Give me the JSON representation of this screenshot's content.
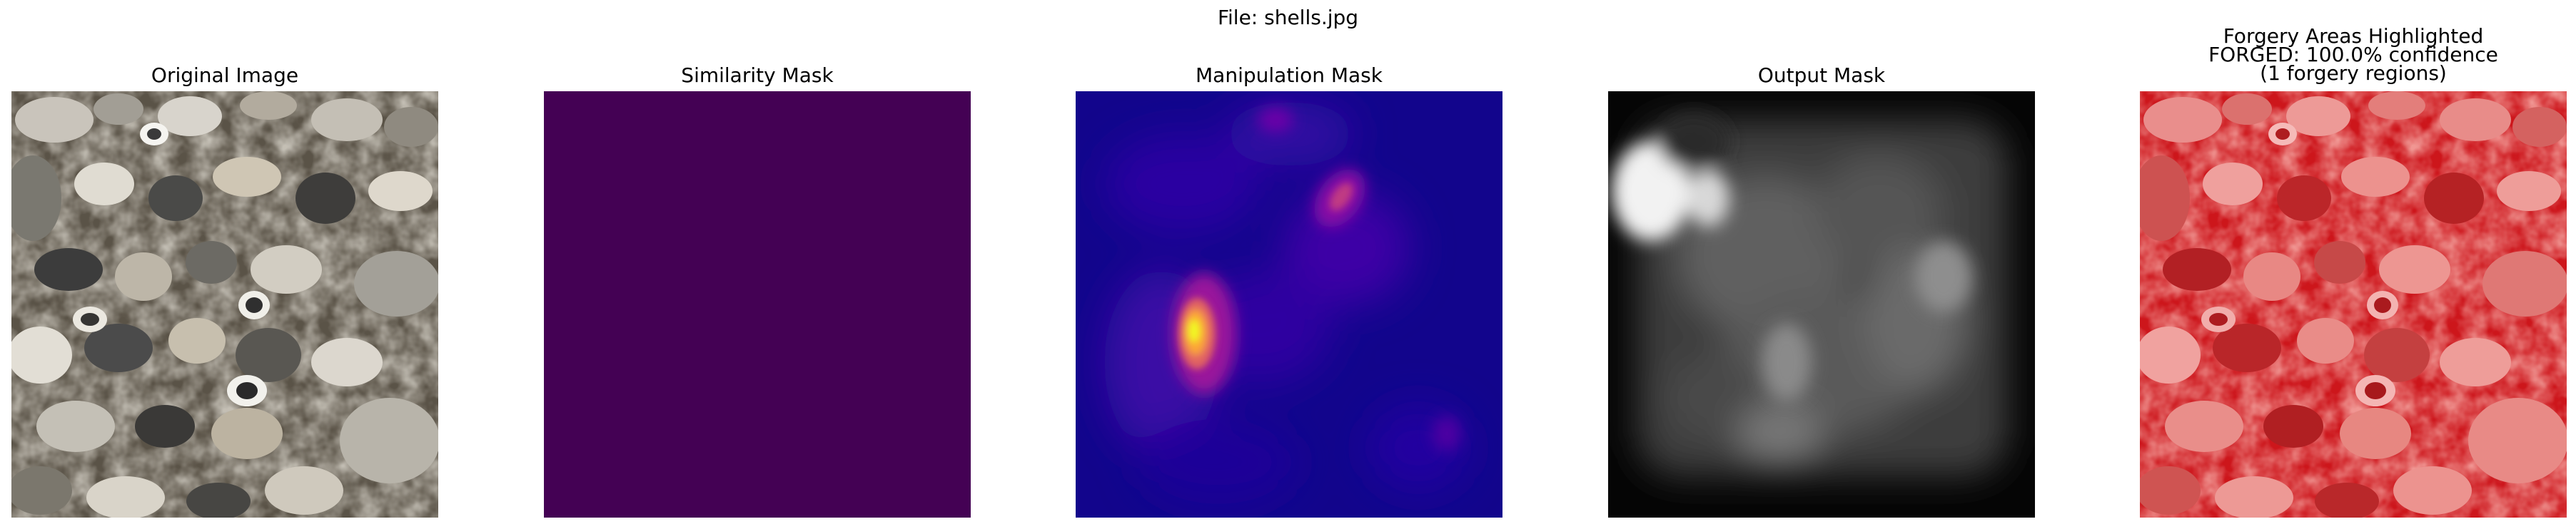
{
  "figure": {
    "title": "File: shells.jpg"
  },
  "panels": [
    {
      "title": "Original Image",
      "content": "photo of beach pebbles and shells"
    },
    {
      "title": "Similarity Mask",
      "fill_color": "#440154"
    },
    {
      "title": "Manipulation Mask",
      "colormap": "plasma"
    },
    {
      "title": "Output Mask",
      "colormap": "gray"
    },
    {
      "title_lines": [
        "Forgery Areas Highlighted",
        "FORGED: 100.0% confidence",
        "(1 forgery regions)"
      ],
      "overlay_color": "#e4141a"
    }
  ],
  "colors": {
    "viridis_low": "#440154",
    "plasma_low": "#12058c",
    "plasma_high": "#f9e21d",
    "forgery_overlay": "#e4141a"
  }
}
